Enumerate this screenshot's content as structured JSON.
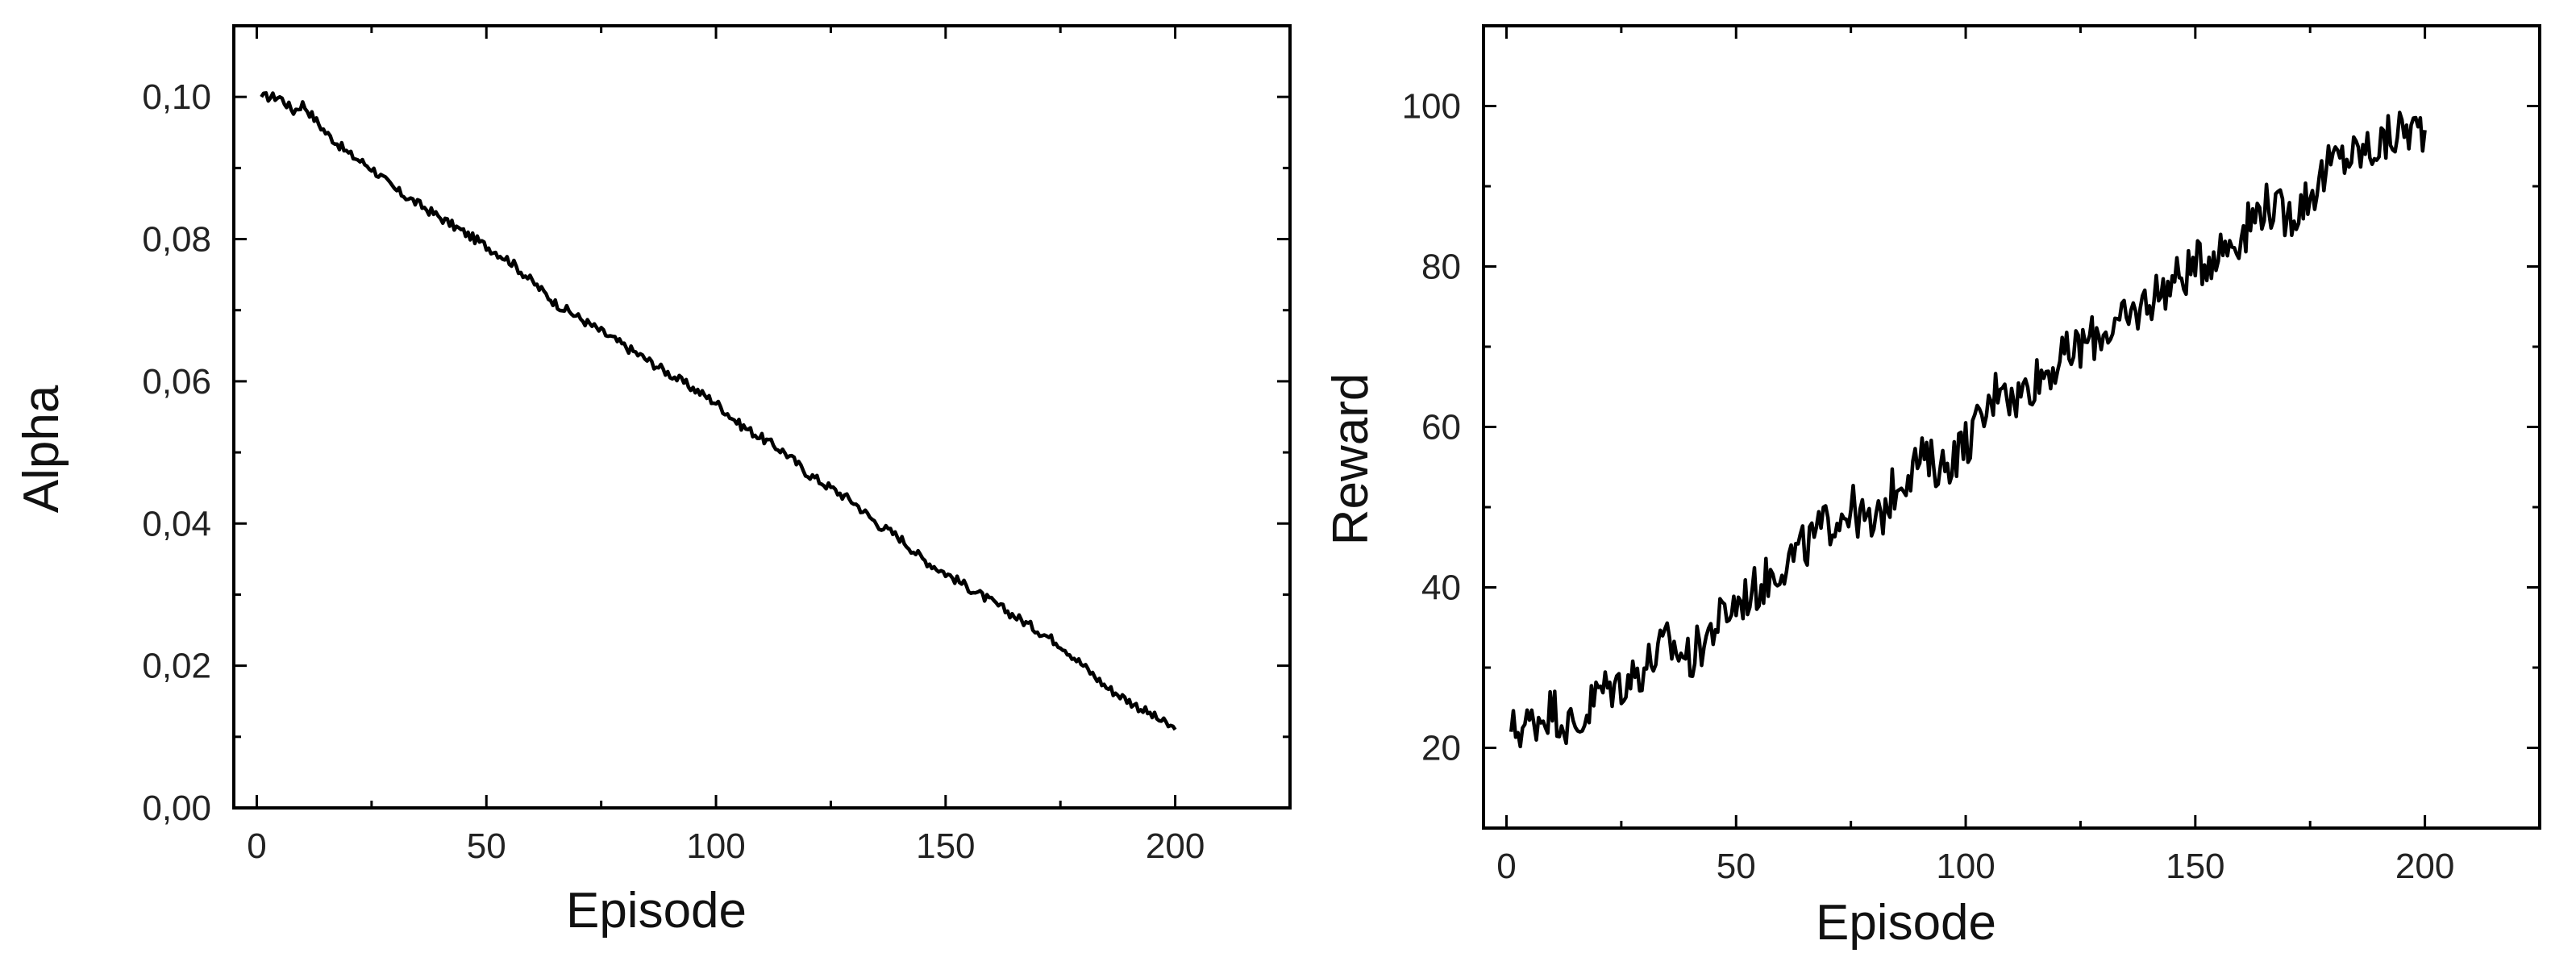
{
  "chart_data": [
    {
      "type": "line",
      "xlabel": "Episode",
      "ylabel": "Alpha",
      "xlim": [
        -5,
        225
      ],
      "ylim": [
        0,
        0.11
      ],
      "xticks": [
        0,
        50,
        100,
        150,
        200
      ],
      "yticks": [
        0.0,
        0.02,
        0.04,
        0.06,
        0.08,
        0.1
      ],
      "xtick_labels": [
        "0",
        "50",
        "100",
        "150",
        "200"
      ],
      "ytick_labels": [
        "0,00",
        "0,02",
        "0,04",
        "0,06",
        "0,08",
        "0,10"
      ],
      "grid": false,
      "series": [
        {
          "x": [
            1,
            5,
            8,
            10,
            15,
            20,
            25,
            30,
            35,
            40,
            45,
            50,
            55,
            60,
            65,
            70,
            75,
            80,
            85,
            90,
            95,
            100,
            105,
            110,
            115,
            120,
            125,
            130,
            135,
            140,
            145,
            150,
            155,
            160,
            165,
            170,
            175,
            180,
            185,
            190,
            195,
            200
          ],
          "y": [
            0.1,
            0.1,
            0.098,
            0.099,
            0.095,
            0.092,
            0.09,
            0.087,
            0.085,
            0.083,
            0.081,
            0.079,
            0.077,
            0.074,
            0.071,
            0.069,
            0.067,
            0.065,
            0.063,
            0.061,
            0.059,
            0.057,
            0.054,
            0.052,
            0.05,
            0.047,
            0.045,
            0.043,
            0.04,
            0.038,
            0.035,
            0.033,
            0.031,
            0.029,
            0.027,
            0.025,
            0.023,
            0.02,
            0.017,
            0.015,
            0.013,
            0.011
          ]
        }
      ]
    },
    {
      "type": "line",
      "xlabel": "Episode",
      "ylabel": "Reward",
      "xlim": [
        -5,
        225
      ],
      "ylim": [
        10,
        110
      ],
      "xticks": [
        0,
        50,
        100,
        150,
        200
      ],
      "yticks": [
        20,
        40,
        60,
        80,
        100
      ],
      "xtick_labels": [
        "0",
        "50",
        "100",
        "150",
        "200"
      ],
      "ytick_labels": [
        "20",
        "40",
        "60",
        "80",
        "100"
      ],
      "grid": false,
      "series": [
        {
          "x": [
            1,
            5,
            10,
            15,
            20,
            25,
            30,
            35,
            40,
            45,
            50,
            55,
            60,
            65,
            70,
            75,
            80,
            85,
            90,
            95,
            100,
            105,
            108,
            110,
            115,
            120,
            125,
            130,
            135,
            140,
            145,
            150,
            155,
            160,
            165,
            170,
            175,
            180,
            185,
            190,
            195,
            200
          ],
          "y": [
            22,
            23,
            25,
            22,
            27,
            28,
            30,
            33,
            31,
            35,
            38,
            40,
            43,
            45,
            48,
            50,
            47,
            53,
            56,
            55,
            58,
            62,
            67,
            63,
            66,
            68,
            70,
            72,
            73,
            76,
            78,
            80,
            82,
            84,
            88,
            86,
            89,
            93,
            94,
            95,
            97,
            97
          ]
        }
      ]
    }
  ]
}
